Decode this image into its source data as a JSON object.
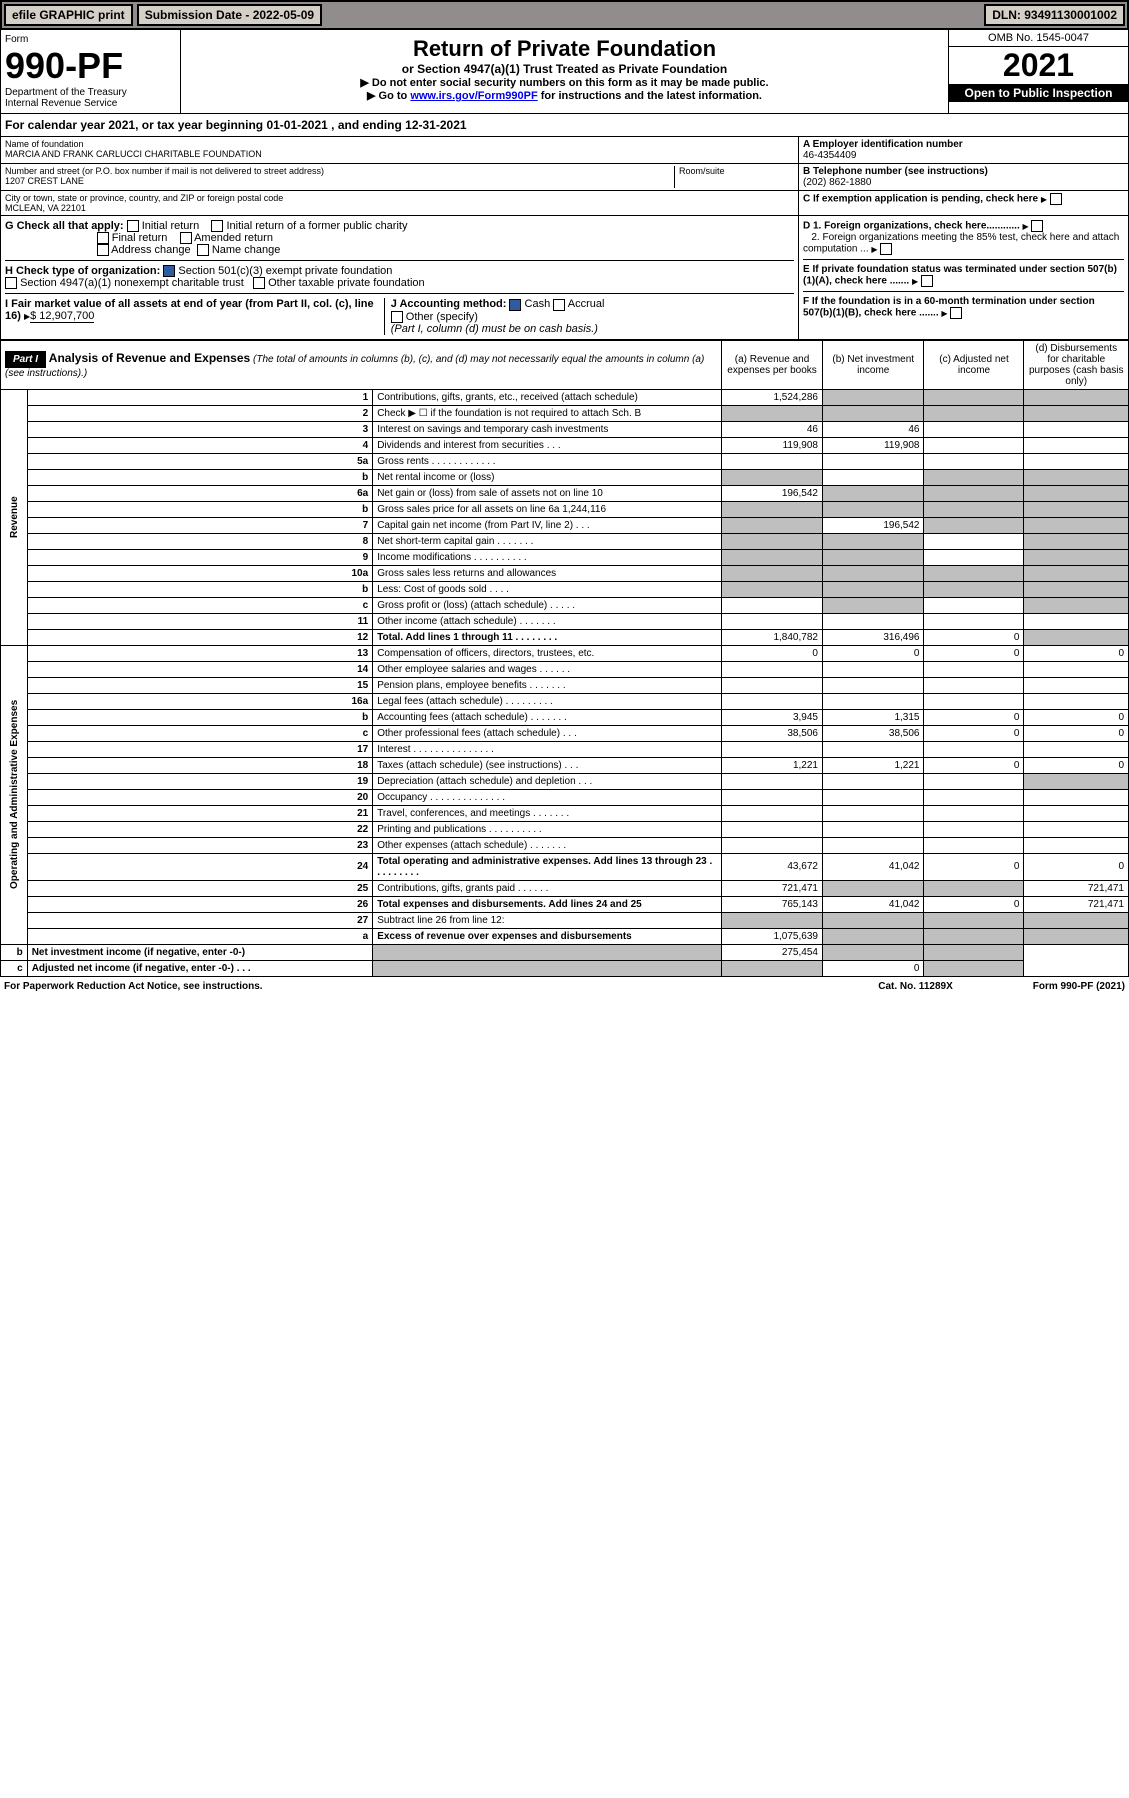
{
  "topbar": {
    "efile": "efile GRAPHIC print",
    "submission": "Submission Date - 2022-05-09",
    "dln": "DLN: 93491130001002"
  },
  "header": {
    "form_label": "Form",
    "form_num": "990-PF",
    "dept": "Department of the Treasury",
    "irs": "Internal Revenue Service",
    "title": "Return of Private Foundation",
    "subtitle": "or Section 4947(a)(1) Trust Treated as Private Foundation",
    "note1": "▶ Do not enter social security numbers on this form as it may be made public.",
    "note2_pre": "▶ Go to ",
    "note2_link": "www.irs.gov/Form990PF",
    "note2_post": " for instructions and the latest information.",
    "omb": "OMB No. 1545-0047",
    "year": "2021",
    "inspect": "Open to Public Inspection"
  },
  "calyear": "For calendar year 2021, or tax year beginning 01-01-2021             , and ending 12-31-2021",
  "id": {
    "name_label": "Name of foundation",
    "name": "MARCIA AND FRANK CARLUCCI CHARITABLE FOUNDATION",
    "ein_label": "A Employer identification number",
    "ein": "46-4354409",
    "addr_label": "Number and street (or P.O. box number if mail is not delivered to street address)",
    "addr": "1207 CREST LANE",
    "room_label": "Room/suite",
    "phone_label": "B Telephone number (see instructions)",
    "phone": "(202) 862-1880",
    "city_label": "City or town, state or province, country, and ZIP or foreign postal code",
    "city": "MCLEAN, VA  22101",
    "c_label": "C If exemption application is pending, check here"
  },
  "checks": {
    "g": "G Check all that apply:",
    "g1": "Initial return",
    "g2": "Initial return of a former public charity",
    "g3": "Final return",
    "g4": "Amended return",
    "g5": "Address change",
    "g6": "Name change",
    "h": "H Check type of organization:",
    "h1": "Section 501(c)(3) exempt private foundation",
    "h2": "Section 4947(a)(1) nonexempt charitable trust",
    "h3": "Other taxable private foundation",
    "i": "I Fair market value of all assets at end of year (from Part II, col. (c), line 16)",
    "i_val": "$  12,907,700",
    "j": "J Accounting method:",
    "j1": "Cash",
    "j2": "Accrual",
    "j3": "Other (specify)",
    "j_note": "(Part I, column (d) must be on cash basis.)",
    "d1": "D 1. Foreign organizations, check here............",
    "d2": "2. Foreign organizations meeting the 85% test, check here and attach computation ...",
    "e": "E If private foundation status was terminated under section 507(b)(1)(A), check here .......",
    "f": "F  If the foundation is in a 60-month termination under section 507(b)(1)(B), check here ......."
  },
  "part1": {
    "label": "Part I",
    "title": "Analysis of Revenue and Expenses",
    "title_note": "(The total of amounts in columns (b), (c), and (d) may not necessarily equal the amounts in column (a) (see instructions).)",
    "col_a": "(a)   Revenue and expenses per books",
    "col_b": "(b)   Net investment income",
    "col_c": "(c)   Adjusted net income",
    "col_d": "(d)  Disbursements for charitable purposes (cash basis only)"
  },
  "revenue_label": "Revenue",
  "expenses_label": "Operating and Administrative Expenses",
  "rows": [
    {
      "n": "1",
      "d": "Contributions, gifts, grants, etc., received (attach schedule)",
      "a": "1,524,286",
      "grey": [
        "b",
        "c",
        "d"
      ]
    },
    {
      "n": "2",
      "d": "Check ▶ ☐ if the foundation is not required to attach Sch. B",
      "grey": [
        "a",
        "b",
        "c",
        "d"
      ]
    },
    {
      "n": "3",
      "d": "Interest on savings and temporary cash investments",
      "a": "46",
      "b": "46"
    },
    {
      "n": "4",
      "d": "Dividends and interest from securities   .  .  .",
      "a": "119,908",
      "b": "119,908"
    },
    {
      "n": "5a",
      "d": "Gross rents   .  .  .  .  .  .  .  .  .  .  .  ."
    },
    {
      "n": "b",
      "d": "Net rental income or (loss)  ",
      "grey": [
        "a",
        "c",
        "d"
      ]
    },
    {
      "n": "6a",
      "d": "Net gain or (loss) from sale of assets not on line 10",
      "a": "196,542",
      "grey": [
        "b",
        "c",
        "d"
      ]
    },
    {
      "n": "b",
      "d": "Gross sales price for all assets on line 6a          1,244,116",
      "grey": [
        "a",
        "b",
        "c",
        "d"
      ]
    },
    {
      "n": "7",
      "d": "Capital gain net income (from Part IV, line 2)   .  .  .",
      "b": "196,542",
      "grey": [
        "a",
        "c",
        "d"
      ]
    },
    {
      "n": "8",
      "d": "Net short-term capital gain   .  .  .  .  .  .  .",
      "grey": [
        "a",
        "b",
        "d"
      ]
    },
    {
      "n": "9",
      "d": "Income modifications .  .  .  .  .  .  .  .  .  .",
      "grey": [
        "a",
        "b",
        "d"
      ]
    },
    {
      "n": "10a",
      "d": "Gross sales less returns and allowances",
      "grey": [
        "a",
        "b",
        "c",
        "d"
      ]
    },
    {
      "n": "b",
      "d": "Less: Cost of goods sold   .  .  .  .",
      "grey": [
        "a",
        "b",
        "c",
        "d"
      ]
    },
    {
      "n": "c",
      "d": "Gross profit or (loss) (attach schedule)   .  .  .  .  .",
      "grey": [
        "b",
        "d"
      ]
    },
    {
      "n": "11",
      "d": "Other income (attach schedule)   .  .  .  .  .  .  ."
    },
    {
      "n": "12",
      "d": "Total. Add lines 1 through 11   .  .  .  .  .  .  .  .",
      "bold": true,
      "a": "1,840,782",
      "b": "316,496",
      "c": "0",
      "grey": [
        "d"
      ]
    },
    {
      "n": "13",
      "d": "Compensation of officers, directors, trustees, etc.",
      "a": "0",
      "b": "0",
      "c": "0",
      "dd": "0"
    },
    {
      "n": "14",
      "d": "Other employee salaries and wages   .  .  .  .  .  ."
    },
    {
      "n": "15",
      "d": "Pension plans, employee benefits   .  .  .  .  .  .  ."
    },
    {
      "n": "16a",
      "d": "Legal fees (attach schedule) .  .  .  .  .  .  .  .  ."
    },
    {
      "n": "b",
      "d": "Accounting fees (attach schedule) .  .  .  .  .  .  .",
      "a": "3,945",
      "b": "1,315",
      "c": "0",
      "dd": "0"
    },
    {
      "n": "c",
      "d": "Other professional fees (attach schedule)   .  .  .",
      "a": "38,506",
      "b": "38,506",
      "c": "0",
      "dd": "0"
    },
    {
      "n": "17",
      "d": "Interest .  .  .  .  .  .  .  .  .  .  .  .  .  .  ."
    },
    {
      "n": "18",
      "d": "Taxes (attach schedule) (see instructions)   .  .  .",
      "a": "1,221",
      "b": "1,221",
      "c": "0",
      "dd": "0"
    },
    {
      "n": "19",
      "d": "Depreciation (attach schedule) and depletion   .  .  .",
      "grey": [
        "d"
      ]
    },
    {
      "n": "20",
      "d": "Occupancy .  .  .  .  .  .  .  .  .  .  .  .  .  ."
    },
    {
      "n": "21",
      "d": "Travel, conferences, and meetings .  .  .  .  .  .  ."
    },
    {
      "n": "22",
      "d": "Printing and publications .  .  .  .  .  .  .  .  .  ."
    },
    {
      "n": "23",
      "d": "Other expenses (attach schedule) .  .  .  .  .  .  ."
    },
    {
      "n": "24",
      "d": "Total operating and administrative expenses. Add lines 13 through 23   .  .  .  .  .  .  .  .  .",
      "bold": true,
      "a": "43,672",
      "b": "41,042",
      "c": "0",
      "dd": "0"
    },
    {
      "n": "25",
      "d": "Contributions, gifts, grants paid   .  .  .  .  .  .",
      "a": "721,471",
      "dd": "721,471",
      "grey": [
        "b",
        "c"
      ]
    },
    {
      "n": "26",
      "d": "Total expenses and disbursements. Add lines 24 and 25",
      "bold": true,
      "a": "765,143",
      "b": "41,042",
      "c": "0",
      "dd": "721,471"
    },
    {
      "n": "27",
      "d": "Subtract line 26 from line 12:",
      "grey": [
        "a",
        "b",
        "c",
        "d"
      ]
    },
    {
      "n": "a",
      "d": "Excess of revenue over expenses and disbursements",
      "bold": true,
      "a": "1,075,639",
      "grey": [
        "b",
        "c",
        "d"
      ]
    },
    {
      "n": "b",
      "d": "Net investment income (if negative, enter -0-)",
      "bold": true,
      "b": "275,454",
      "grey": [
        "a",
        "c",
        "d"
      ]
    },
    {
      "n": "c",
      "d": "Adjusted net income (if negative, enter -0-)   .  .  .",
      "bold": true,
      "c": "0",
      "grey": [
        "a",
        "b",
        "d"
      ]
    }
  ],
  "footer": {
    "pra": "For Paperwork Reduction Act Notice, see instructions.",
    "cat": "Cat. No. 11289X",
    "form": "Form 990-PF (2021)"
  }
}
